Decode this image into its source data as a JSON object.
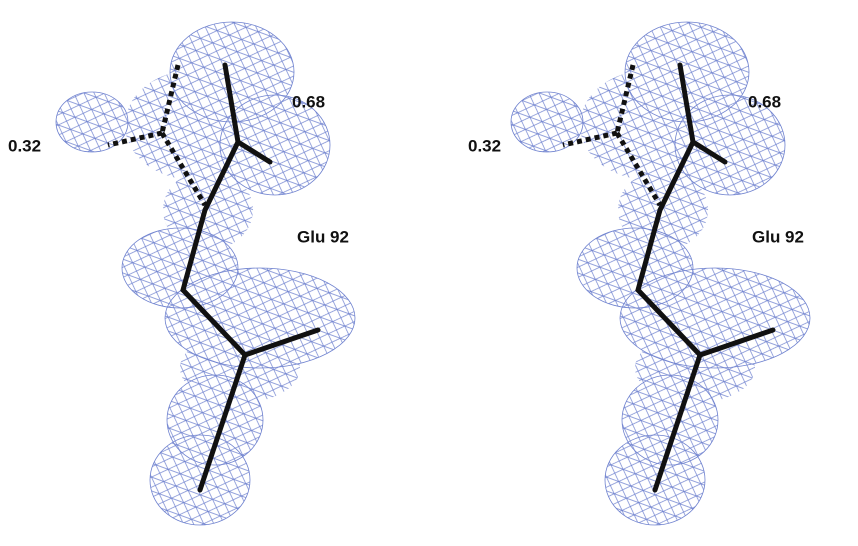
{
  "panels": [
    {
      "labels": [
        "0.32",
        "0.68",
        "Glu 92"
      ]
    },
    {
      "labels": [
        "0.32",
        "0.68",
        "Glu 92"
      ]
    }
  ]
}
